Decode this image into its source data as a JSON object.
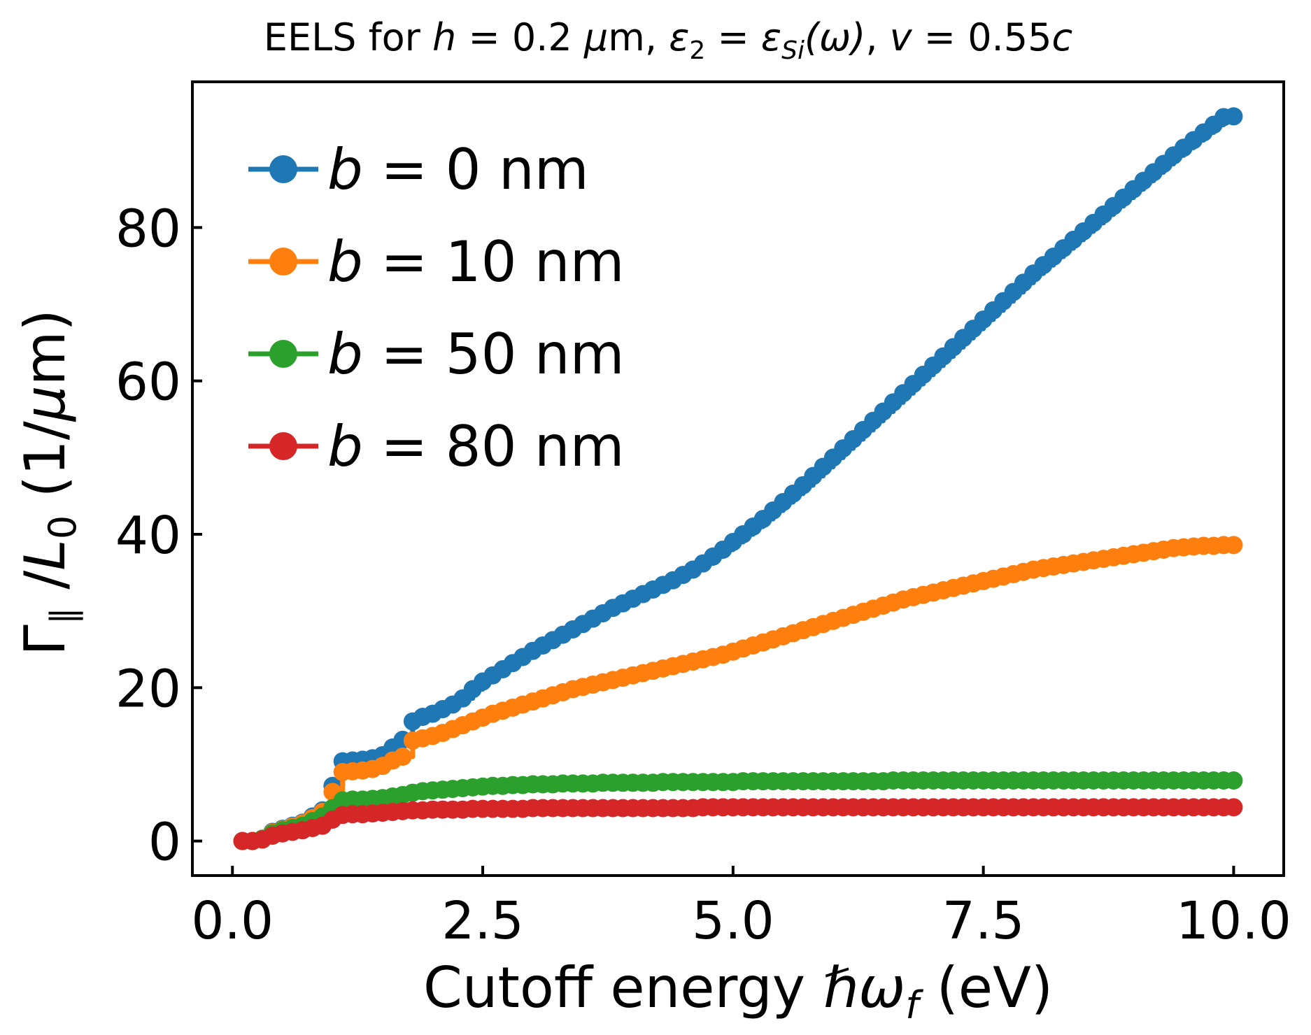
{
  "chart_data": {
    "type": "line",
    "title": {
      "pre": "EELS for ",
      "h_sym": "h",
      "h_val": " = 0.2 ",
      "mu": "μ",
      "h_unit": "m, ",
      "eps": "ε",
      "eps_sub": "2",
      "eq": " = ",
      "eps_si_sub": "Si",
      "omega_arg": "(ω)",
      "sep": ", ",
      "v_sym": "v",
      "v_val": " = 0.55",
      "c_sym": "c"
    },
    "xlabel": {
      "pre": "Cutoff energy ",
      "hbar": "ℏ",
      "omega": "ω",
      "sub": "f",
      "post": " (eV)"
    },
    "ylabel": {
      "gamma": "Γ",
      "par": "∥",
      "slash": " /",
      "L": "L",
      "L_sub": "0",
      "post": " (1/",
      "mu": "μ",
      "post2": "m)"
    },
    "xlim": [
      -0.4,
      10.5
    ],
    "ylim": [
      -4.5,
      99
    ],
    "xticks": [
      "0.0",
      "2.5",
      "5.0",
      "7.5",
      "10.0"
    ],
    "yticks": [
      "0",
      "20",
      "40",
      "60",
      "80"
    ],
    "grid": false,
    "legend_position": "top-left",
    "x_range": [
      0.1,
      10.0
    ],
    "n_points": 100,
    "series": [
      {
        "name_sym": "b",
        "name_val": " = 0 nm",
        "color": "#1f77b4",
        "values": [
          0,
          0,
          0.3,
          1.2,
          1.6,
          2.0,
          2.4,
          3.2,
          4.0,
          7.2,
          10.4,
          10.5,
          10.6,
          10.8,
          11.2,
          12.2,
          13.2,
          15.6,
          16.2,
          16.6,
          17.2,
          17.8,
          18.6,
          19.8,
          20.8,
          21.6,
          22.4,
          23.2,
          24.0,
          24.8,
          25.5,
          26.2,
          26.9,
          27.6,
          28.3,
          29.0,
          29.7,
          30.4,
          31.0,
          31.6,
          32.2,
          32.8,
          33.4,
          34.0,
          34.7,
          35.4,
          36.2,
          37.1,
          38.0,
          39.0,
          40.0,
          41.0,
          42.0,
          43.1,
          44.2,
          45.3,
          46.4,
          47.6,
          48.8,
          50.0,
          51.2,
          52.4,
          53.6,
          54.8,
          56.0,
          57.2,
          58.4,
          59.6,
          60.8,
          62.0,
          63.2,
          64.4,
          65.6,
          66.8,
          68.0,
          69.2,
          70.4,
          71.6,
          72.8,
          74.0,
          75.1,
          76.2,
          77.3,
          78.4,
          79.5,
          80.6,
          81.7,
          82.8,
          83.9,
          85.0,
          86.1,
          87.2,
          88.3,
          89.4,
          90.4,
          91.4,
          92.4,
          93.4,
          94.4,
          94.5
        ]
      },
      {
        "name_sym": "b",
        "name_val": " = 10 nm",
        "color": "#ff7f0e",
        "values": [
          0,
          0,
          0.3,
          1.1,
          1.5,
          1.9,
          2.3,
          3.0,
          3.8,
          6.4,
          9.0,
          9.1,
          9.2,
          9.4,
          9.8,
          10.5,
          11.0,
          13.1,
          13.4,
          13.7,
          14.1,
          14.6,
          15.1,
          15.6,
          16.1,
          16.6,
          17.0,
          17.4,
          17.8,
          18.2,
          18.6,
          19.0,
          19.4,
          19.8,
          20.1,
          20.4,
          20.7,
          21.0,
          21.3,
          21.6,
          21.9,
          22.2,
          22.5,
          22.8,
          23.1,
          23.4,
          23.7,
          24.0,
          24.3,
          24.7,
          25.1,
          25.5,
          25.9,
          26.3,
          26.7,
          27.1,
          27.5,
          27.9,
          28.3,
          28.7,
          29.1,
          29.5,
          29.9,
          30.3,
          30.7,
          31.1,
          31.5,
          31.8,
          32.1,
          32.4,
          32.7,
          33.0,
          33.3,
          33.6,
          33.9,
          34.2,
          34.5,
          34.8,
          35.1,
          35.4,
          35.6,
          35.8,
          36.0,
          36.2,
          36.4,
          36.6,
          36.8,
          37.0,
          37.2,
          37.4,
          37.6,
          37.8,
          38.0,
          38.2,
          38.3,
          38.4,
          38.5,
          38.5,
          38.6,
          38.6
        ]
      },
      {
        "name_sym": "b",
        "name_val": " = 50 nm",
        "color": "#2ca02c",
        "values": [
          0,
          0,
          0.3,
          1.0,
          1.4,
          1.7,
          2.0,
          2.6,
          3.2,
          4.3,
          5.3,
          5.4,
          5.4,
          5.5,
          5.6,
          5.8,
          6.0,
          6.3,
          6.5,
          6.6,
          6.7,
          6.8,
          6.9,
          7.0,
          7.1,
          7.2,
          7.2,
          7.3,
          7.3,
          7.4,
          7.4,
          7.4,
          7.5,
          7.5,
          7.5,
          7.5,
          7.6,
          7.6,
          7.6,
          7.6,
          7.6,
          7.6,
          7.7,
          7.7,
          7.7,
          7.7,
          7.7,
          7.7,
          7.7,
          7.7,
          7.8,
          7.8,
          7.8,
          7.8,
          7.8,
          7.8,
          7.8,
          7.8,
          7.8,
          7.8,
          7.8,
          7.8,
          7.8,
          7.8,
          7.8,
          7.9,
          7.9,
          7.9,
          7.9,
          7.9,
          7.9,
          7.9,
          7.9,
          7.9,
          7.9,
          7.9,
          7.9,
          7.9,
          7.9,
          7.9,
          7.9,
          7.9,
          7.9,
          7.9,
          7.9,
          7.9,
          7.9,
          7.9,
          7.9,
          7.9,
          7.9,
          7.9,
          7.9,
          7.9,
          7.9,
          7.9,
          7.9,
          7.9,
          7.9,
          7.9
        ]
      },
      {
        "name_sym": "b",
        "name_val": " = 80 nm",
        "color": "#d62728",
        "values": [
          0,
          0,
          0.2,
          0.7,
          1.0,
          1.2,
          1.4,
          1.7,
          2.0,
          2.8,
          3.4,
          3.5,
          3.5,
          3.6,
          3.7,
          3.8,
          3.9,
          4.0,
          4.0,
          4.1,
          4.1,
          4.1,
          4.1,
          4.2,
          4.2,
          4.2,
          4.2,
          4.2,
          4.2,
          4.3,
          4.3,
          4.3,
          4.3,
          4.3,
          4.3,
          4.3,
          4.3,
          4.3,
          4.3,
          4.3,
          4.3,
          4.3,
          4.3,
          4.3,
          4.3,
          4.3,
          4.4,
          4.4,
          4.4,
          4.4,
          4.4,
          4.4,
          4.4,
          4.4,
          4.4,
          4.4,
          4.4,
          4.4,
          4.4,
          4.4,
          4.4,
          4.4,
          4.4,
          4.4,
          4.4,
          4.4,
          4.4,
          4.4,
          4.4,
          4.4,
          4.4,
          4.4,
          4.4,
          4.4,
          4.4,
          4.4,
          4.4,
          4.4,
          4.4,
          4.4,
          4.4,
          4.4,
          4.4,
          4.4,
          4.4,
          4.4,
          4.4,
          4.4,
          4.4,
          4.4,
          4.4,
          4.4,
          4.4,
          4.4,
          4.4,
          4.4,
          4.4,
          4.4,
          4.4,
          4.4
        ]
      }
    ]
  }
}
